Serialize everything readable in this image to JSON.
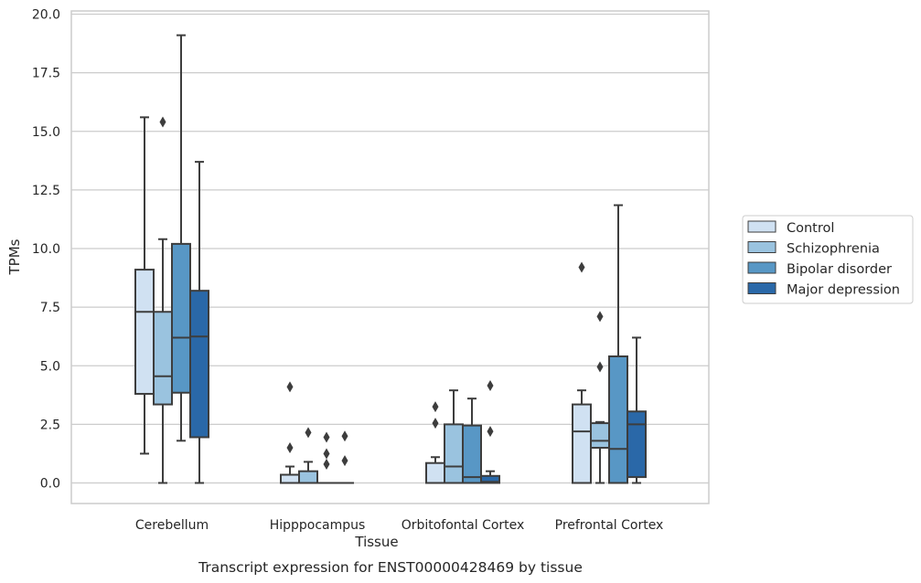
{
  "chart_data": {
    "type": "box",
    "xlabel": "Tissue",
    "ylabel": "TPMs",
    "caption": "Transcript expression for ENST00000428469 by tissue",
    "ylim": [
      -0.85,
      20.1
    ],
    "yticks": [
      "0.0",
      "2.5",
      "5.0",
      "7.5",
      "10.0",
      "12.5",
      "15.0",
      "17.5",
      "20.0"
    ],
    "grid": "horizontal",
    "legend_position": "right",
    "categories": [
      "Cerebellum",
      "Hipppocampus",
      "Orbitofontal Cortex",
      "Prefrontal Cortex"
    ],
    "series": [
      {
        "name": "Control",
        "color": "#d0e1f2",
        "boxes": [
          {
            "whislo": 1.25,
            "q1": 3.8,
            "med": 7.3,
            "q3": 9.1,
            "whishi": 15.6,
            "fliers": []
          },
          {
            "whislo": 0.0,
            "q1": 0.0,
            "med": 0.0,
            "q3": 0.35,
            "whishi": 0.7,
            "fliers": [
              1.5,
              4.1
            ]
          },
          {
            "whislo": 0.0,
            "q1": 0.0,
            "med": 0.0,
            "q3": 0.85,
            "whishi": 1.1,
            "fliers": [
              2.55,
              3.25
            ]
          },
          {
            "whislo": 0.0,
            "q1": 0.0,
            "med": 2.2,
            "q3": 3.35,
            "whishi": 3.95,
            "fliers": [
              9.2
            ]
          }
        ]
      },
      {
        "name": "Schizophrenia",
        "color": "#9ac3df",
        "boxes": [
          {
            "whislo": 0.0,
            "q1": 3.35,
            "med": 4.55,
            "q3": 7.3,
            "whishi": 10.4,
            "fliers": [
              15.4
            ]
          },
          {
            "whislo": 0.0,
            "q1": 0.0,
            "med": 0.0,
            "q3": 0.5,
            "whishi": 0.9,
            "fliers": [
              2.15
            ]
          },
          {
            "whislo": 0.0,
            "q1": 0.0,
            "med": 0.7,
            "q3": 2.5,
            "whishi": 3.95,
            "fliers": []
          },
          {
            "whislo": 0.0,
            "q1": 1.5,
            "med": 1.8,
            "q3": 2.55,
            "whishi": 2.6,
            "fliers": [
              4.95,
              7.1
            ]
          }
        ]
      },
      {
        "name": "Bipolar disorder",
        "color": "#5897c5",
        "boxes": [
          {
            "whislo": 1.8,
            "q1": 3.85,
            "med": 6.2,
            "q3": 10.2,
            "whishi": 19.1,
            "fliers": []
          },
          {
            "whislo": 0.0,
            "q1": 0.0,
            "med": 0.0,
            "q3": 0.0,
            "whishi": 0.0,
            "fliers": [
              0.8,
              1.25,
              1.95
            ]
          },
          {
            "whislo": 0.0,
            "q1": 0.0,
            "med": 0.25,
            "q3": 2.45,
            "whishi": 3.6,
            "fliers": []
          },
          {
            "whislo": 0.0,
            "q1": 0.0,
            "med": 1.45,
            "q3": 5.4,
            "whishi": 11.85,
            "fliers": []
          }
        ]
      },
      {
        "name": "Major depression",
        "color": "#2a68a8",
        "boxes": [
          {
            "whislo": 0.0,
            "q1": 1.95,
            "med": 6.25,
            "q3": 8.2,
            "whishi": 13.7,
            "fliers": []
          },
          {
            "whislo": 0.0,
            "q1": 0.0,
            "med": 0.0,
            "q3": 0.0,
            "whishi": 0.0,
            "fliers": [
              0.95,
              2.0
            ]
          },
          {
            "whislo": 0.0,
            "q1": 0.0,
            "med": 0.05,
            "q3": 0.3,
            "whishi": 0.5,
            "fliers": [
              2.2,
              4.15
            ]
          },
          {
            "whislo": 0.0,
            "q1": 0.25,
            "med": 2.5,
            "q3": 3.05,
            "whishi": 6.2,
            "fliers": []
          }
        ]
      }
    ]
  }
}
